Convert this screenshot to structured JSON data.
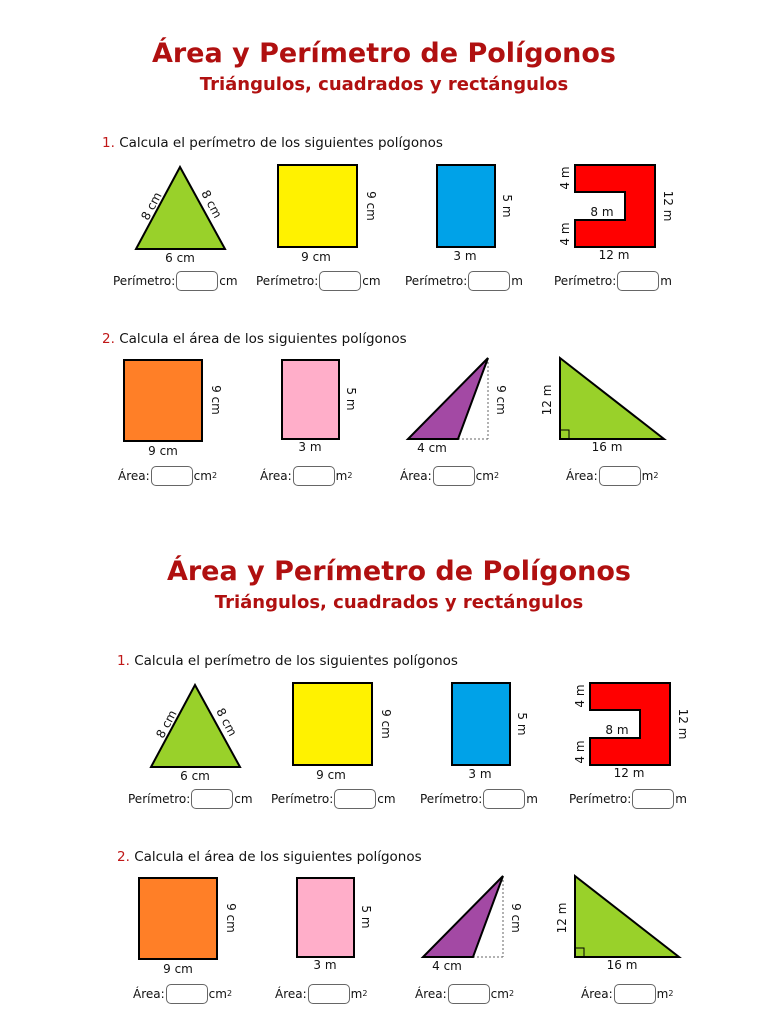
{
  "title": "Área y Perímetro de Polígonos",
  "subtitle": "Triángulos, cuadrados y rectángulos",
  "q1": {
    "number": "1.",
    "text": "Calcula el perímetro de los siguientes polígonos",
    "shapes": [
      {
        "label_side1": "8 cm",
        "label_side2": "8 cm",
        "label_base": "6 cm",
        "answer_label": "Perímetro:",
        "unit": "cm",
        "answer_value": ""
      },
      {
        "label_side": "9 cm",
        "label_base": "9 cm",
        "answer_label": "Perímetro:",
        "unit": "cm",
        "answer_value": ""
      },
      {
        "label_side": "5 m",
        "label_base": "3 m",
        "answer_label": "Perímetro:",
        "unit": "m",
        "answer_value": ""
      },
      {
        "label_top_left": "4 m",
        "label_bottom_left": "4 m",
        "label_inner": "8 m",
        "label_right": "12 m",
        "label_base": "12 m",
        "answer_label": "Perímetro:",
        "unit": "m",
        "answer_value": ""
      }
    ]
  },
  "q2": {
    "number": "2.",
    "text": "Calcula el área de los siguientes polígonos",
    "shapes": [
      {
        "label_side": "9 cm",
        "label_base": "9 cm",
        "answer_label": "Área:",
        "unit": "cm",
        "sup": "2",
        "answer_value": ""
      },
      {
        "label_side": "5 m",
        "label_base": "3 m",
        "answer_label": "Área:",
        "unit": "m",
        "sup": "2",
        "answer_value": ""
      },
      {
        "label_height": "9 cm",
        "label_base": "4 cm",
        "answer_label": "Área:",
        "unit": "cm",
        "sup": "2",
        "answer_value": ""
      },
      {
        "label_height": "12 m",
        "label_base": "16 m",
        "answer_label": "Área:",
        "unit": "m",
        "sup": "2",
        "answer_value": ""
      }
    ]
  },
  "colors": {
    "title": "#b01010",
    "triangle_green": "#99d12a",
    "yellow": "#fff200",
    "blue": "#00a2e8",
    "red": "#ff0000",
    "orange": "#ff7f27",
    "pink": "#ffaec9",
    "purple": "#a349a4",
    "right_triangle_green": "#99d12a"
  }
}
